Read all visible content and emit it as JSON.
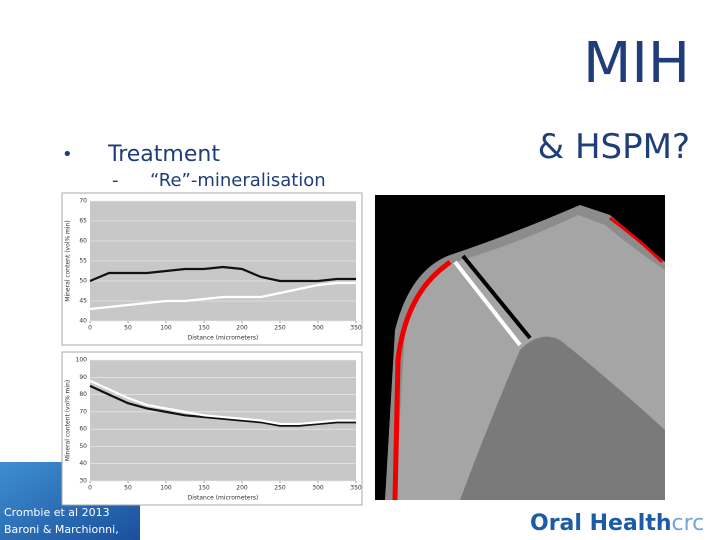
{
  "slide": {
    "title": "MIH",
    "subtitle": "& HSPM?",
    "bullet_marker": "•",
    "bullet": "Treatment",
    "sub_marker": "-",
    "sub_bullet": "“Re”-mineralisation",
    "citation": [
      "Crombie et al 2013",
      "Baroni & Marchionni,"
    ],
    "logo": {
      "main": "Oral Health",
      "suffix": "crc"
    }
  },
  "charts": [
    {
      "type": "line",
      "xlabel": "Distance (micrometers)",
      "ylabel": "Mineral content (vol% min)",
      "xlim": [
        0,
        350
      ],
      "xticks": [
        0,
        50,
        100,
        150,
        200,
        250,
        300,
        350
      ],
      "ylim": [
        40,
        70
      ],
      "yticks": [
        40,
        45,
        50,
        55,
        60,
        65,
        70
      ],
      "grid": true,
      "x": [
        0,
        25,
        50,
        75,
        100,
        125,
        150,
        175,
        200,
        225,
        250,
        275,
        300,
        325,
        350
      ],
      "series": [
        {
          "color": "#111111",
          "values": [
            50,
            52,
            52,
            52,
            52.5,
            53,
            53,
            53.5,
            53,
            51,
            50,
            50,
            50,
            50.5,
            50.5
          ]
        },
        {
          "color": "#ffffff",
          "values": [
            43,
            43.5,
            44,
            44.5,
            45,
            45,
            45.5,
            46,
            46,
            46,
            47,
            48,
            49,
            49.5,
            49.5
          ]
        }
      ]
    },
    {
      "type": "line",
      "xlabel": "Distance (micrometers)",
      "ylabel": "Mineral content (vol% min)",
      "xlim": [
        0,
        350
      ],
      "xticks": [
        0,
        50,
        100,
        150,
        200,
        250,
        300,
        350
      ],
      "ylim": [
        30,
        100
      ],
      "yticks": [
        30,
        40,
        50,
        60,
        70,
        80,
        90,
        100
      ],
      "grid": true,
      "x": [
        0,
        25,
        50,
        75,
        100,
        125,
        150,
        175,
        200,
        225,
        250,
        275,
        300,
        325,
        350
      ],
      "series": [
        {
          "color": "#111111",
          "values": [
            85,
            80,
            75,
            72,
            70,
            68,
            67,
            66,
            65,
            64,
            62,
            62,
            63,
            64,
            64
          ]
        },
        {
          "color": "#ffffff",
          "values": [
            88,
            83,
            78,
            74,
            72,
            70,
            68,
            67,
            66,
            65,
            63,
            63,
            64,
            65,
            65
          ]
        }
      ]
    }
  ]
}
